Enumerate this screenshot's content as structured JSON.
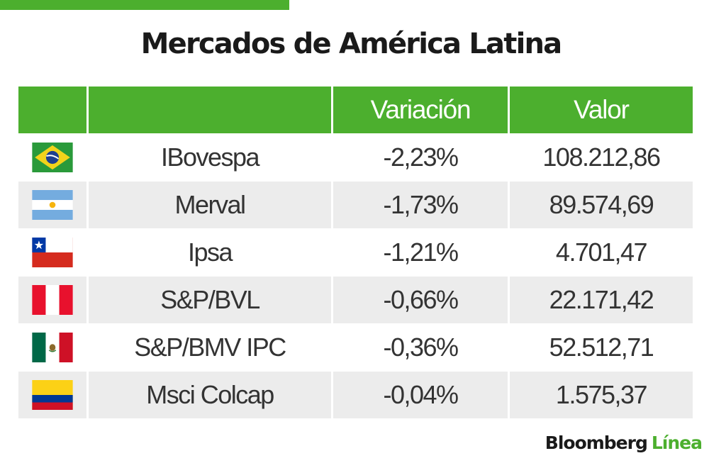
{
  "title": "Mercados de América Latina",
  "colors": {
    "accent_green": "#4caf2e",
    "row_light": "#ffffff",
    "row_shaded": "#ececec",
    "text": "#333333"
  },
  "chart_data": {
    "type": "table",
    "columns": [
      "",
      "",
      "Variación",
      "Valor"
    ],
    "rows": [
      {
        "flag": "brazil-flag-icon",
        "index": "IBovespa",
        "variation": "-2,23%",
        "value": "108.212,86"
      },
      {
        "flag": "argentina-flag-icon",
        "index": "Merval",
        "variation": "-1,73%",
        "value": "89.574,69"
      },
      {
        "flag": "chile-flag-icon",
        "index": "Ipsa",
        "variation": "-1,21%",
        "value": "4.701,47"
      },
      {
        "flag": "peru-flag-icon",
        "index": "S&P/BVL",
        "variation": "-0,66%",
        "value": "22.171,42"
      },
      {
        "flag": "mexico-flag-icon",
        "index": "S&P/BMV IPC",
        "variation": "-0,36%",
        "value": "52.512,71"
      },
      {
        "flag": "colombia-flag-icon",
        "index": "Msci Colcap",
        "variation": "-0,04%",
        "value": "1.575,37"
      }
    ]
  },
  "logo": {
    "part1": "Bloomberg",
    "part2": "Línea"
  }
}
